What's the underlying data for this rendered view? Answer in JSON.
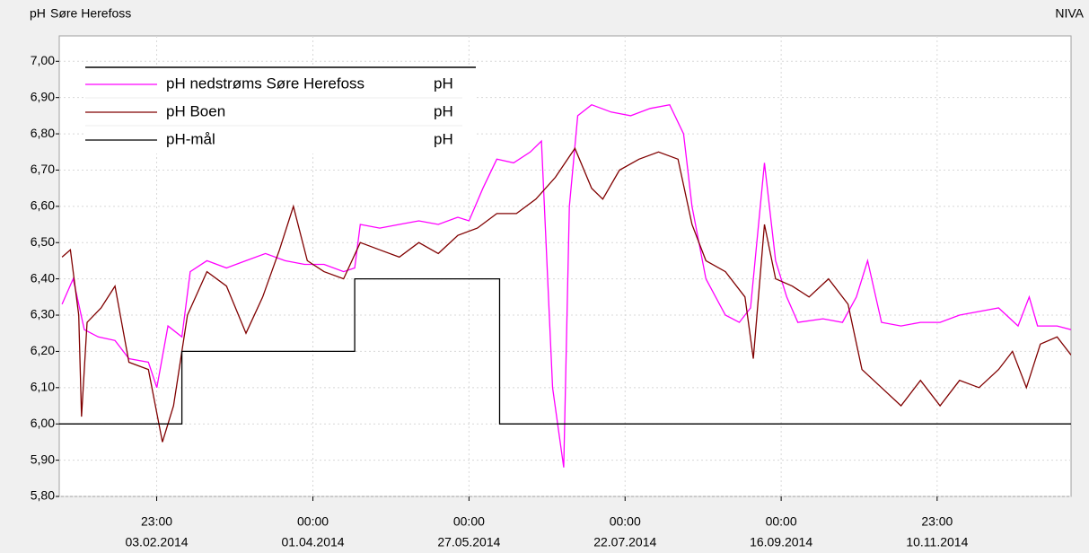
{
  "chart_data": {
    "type": "line",
    "y_label": "pH",
    "title": "Søre Herefoss",
    "source": "NIVA",
    "xlim": [
      "2013-12-31",
      "2014-12-29"
    ],
    "ylim": [
      5.8,
      7.07
    ],
    "yticks": [
      {
        "value": 5.8,
        "label": "5,80"
      },
      {
        "value": 5.9,
        "label": "5,90"
      },
      {
        "value": 6.0,
        "label": "6,00"
      },
      {
        "value": 6.1,
        "label": "6,10"
      },
      {
        "value": 6.2,
        "label": "6,20"
      },
      {
        "value": 6.3,
        "label": "6,30"
      },
      {
        "value": 6.4,
        "label": "6,40"
      },
      {
        "value": 6.5,
        "label": "6,50"
      },
      {
        "value": 6.6,
        "label": "6,60"
      },
      {
        "value": 6.7,
        "label": "6,70"
      },
      {
        "value": 6.8,
        "label": "6,80"
      },
      {
        "value": 6.9,
        "label": "6,90"
      },
      {
        "value": 7.0,
        "label": "7,00"
      }
    ],
    "xticks": [
      {
        "value": "2014-02-03T23:00",
        "label": [
          "23:00",
          "03.02.2014"
        ]
      },
      {
        "value": "2014-04-01T00:00",
        "label": [
          "00:00",
          "01.04.2014"
        ]
      },
      {
        "value": "2014-05-27T00:00",
        "label": [
          "00:00",
          "27.05.2014"
        ]
      },
      {
        "value": "2014-07-22T00:00",
        "label": [
          "00:00",
          "22.07.2014"
        ]
      },
      {
        "value": "2014-09-16T00:00",
        "label": [
          "00:00",
          "16.09.2014"
        ]
      },
      {
        "value": "2014-11-10T23:00",
        "label": [
          "23:00",
          "10.11.2014"
        ]
      }
    ],
    "grid": true,
    "legend": "top-left",
    "series": [
      {
        "name": "pH nedstrøms Søre Herefoss",
        "unit": "pH",
        "color": "#ff00ff",
        "x": [
          "2014-01-01",
          "2014-01-05",
          "2014-01-09",
          "2014-01-14",
          "2014-01-20",
          "2014-01-25",
          "2014-02-01",
          "2014-02-04",
          "2014-02-08",
          "2014-02-13",
          "2014-02-16",
          "2014-02-22",
          "2014-03-01",
          "2014-03-08",
          "2014-03-15",
          "2014-03-22",
          "2014-03-29",
          "2014-04-05",
          "2014-04-12",
          "2014-04-16",
          "2014-04-18",
          "2014-04-25",
          "2014-05-02",
          "2014-05-09",
          "2014-05-16",
          "2014-05-23",
          "2014-05-27",
          "2014-06-01",
          "2014-06-06",
          "2014-06-12",
          "2014-06-18",
          "2014-06-22",
          "2014-06-26",
          "2014-06-30",
          "2014-07-02",
          "2014-07-05",
          "2014-07-10",
          "2014-07-17",
          "2014-07-24",
          "2014-07-31",
          "2014-08-07",
          "2014-08-12",
          "2014-08-15",
          "2014-08-20",
          "2014-08-27",
          "2014-09-01",
          "2014-09-05",
          "2014-09-10",
          "2014-09-14",
          "2014-09-18",
          "2014-09-22",
          "2014-10-01",
          "2014-10-08",
          "2014-10-13",
          "2014-10-17",
          "2014-10-22",
          "2014-10-29",
          "2014-11-05",
          "2014-11-12",
          "2014-11-19",
          "2014-11-26",
          "2014-12-03",
          "2014-12-10",
          "2014-12-14",
          "2014-12-17",
          "2014-12-24",
          "2014-12-29"
        ],
        "values": [
          6.33,
          6.4,
          6.26,
          6.24,
          6.23,
          6.18,
          6.17,
          6.1,
          6.27,
          6.24,
          6.42,
          6.45,
          6.43,
          6.45,
          6.47,
          6.45,
          6.44,
          6.44,
          6.42,
          6.43,
          6.55,
          6.54,
          6.55,
          6.56,
          6.55,
          6.57,
          6.56,
          6.65,
          6.73,
          6.72,
          6.75,
          6.78,
          6.1,
          5.88,
          6.6,
          6.85,
          6.88,
          6.86,
          6.85,
          6.87,
          6.88,
          6.8,
          6.6,
          6.4,
          6.3,
          6.28,
          6.32,
          6.72,
          6.45,
          6.35,
          6.28,
          6.29,
          6.28,
          6.35,
          6.45,
          6.28,
          6.27,
          6.28,
          6.28,
          6.3,
          6.31,
          6.32,
          6.27,
          6.35,
          6.27,
          6.27,
          6.26
        ]
      },
      {
        "name": "pH Boen",
        "unit": "pH",
        "color": "#800000",
        "x": [
          "2014-01-01",
          "2014-01-04",
          "2014-01-07",
          "2014-01-08",
          "2014-01-10",
          "2014-01-15",
          "2014-01-20",
          "2014-01-25",
          "2014-02-01",
          "2014-02-06",
          "2014-02-10",
          "2014-02-15",
          "2014-02-22",
          "2014-03-01",
          "2014-03-08",
          "2014-03-14",
          "2014-03-20",
          "2014-03-25",
          "2014-03-30",
          "2014-04-05",
          "2014-04-12",
          "2014-04-18",
          "2014-04-25",
          "2014-05-02",
          "2014-05-09",
          "2014-05-16",
          "2014-05-23",
          "2014-05-30",
          "2014-06-06",
          "2014-06-13",
          "2014-06-20",
          "2014-06-27",
          "2014-07-04",
          "2014-07-10",
          "2014-07-14",
          "2014-07-20",
          "2014-07-27",
          "2014-08-03",
          "2014-08-10",
          "2014-08-15",
          "2014-08-20",
          "2014-08-27",
          "2014-09-03",
          "2014-09-06",
          "2014-09-10",
          "2014-09-14",
          "2014-09-20",
          "2014-09-26",
          "2014-10-03",
          "2014-10-10",
          "2014-10-15",
          "2014-10-22",
          "2014-10-29",
          "2014-11-05",
          "2014-11-12",
          "2014-11-19",
          "2014-11-26",
          "2014-12-03",
          "2014-12-08",
          "2014-12-13",
          "2014-12-18",
          "2014-12-24",
          "2014-12-29"
        ],
        "values": [
          6.46,
          6.48,
          6.3,
          6.02,
          6.28,
          6.32,
          6.38,
          6.17,
          6.15,
          5.95,
          6.05,
          6.3,
          6.42,
          6.38,
          6.25,
          6.35,
          6.48,
          6.6,
          6.45,
          6.42,
          6.4,
          6.5,
          6.48,
          6.46,
          6.5,
          6.47,
          6.52,
          6.54,
          6.58,
          6.58,
          6.62,
          6.68,
          6.76,
          6.65,
          6.62,
          6.7,
          6.73,
          6.75,
          6.73,
          6.55,
          6.45,
          6.42,
          6.35,
          6.18,
          6.55,
          6.4,
          6.38,
          6.35,
          6.4,
          6.33,
          6.15,
          6.1,
          6.05,
          6.12,
          6.05,
          6.12,
          6.1,
          6.15,
          6.2,
          6.1,
          6.22,
          6.24,
          6.19
        ]
      },
      {
        "name": "pH-mål",
        "unit": "pH",
        "color": "#000000",
        "x": [
          "2013-12-31",
          "2014-02-13",
          "2014-02-13",
          "2014-04-16",
          "2014-04-16",
          "2014-06-07",
          "2014-06-07",
          "2014-12-29"
        ],
        "values": [
          6.0,
          6.0,
          6.2,
          6.2,
          6.4,
          6.4,
          6.0,
          6.0
        ]
      }
    ]
  }
}
